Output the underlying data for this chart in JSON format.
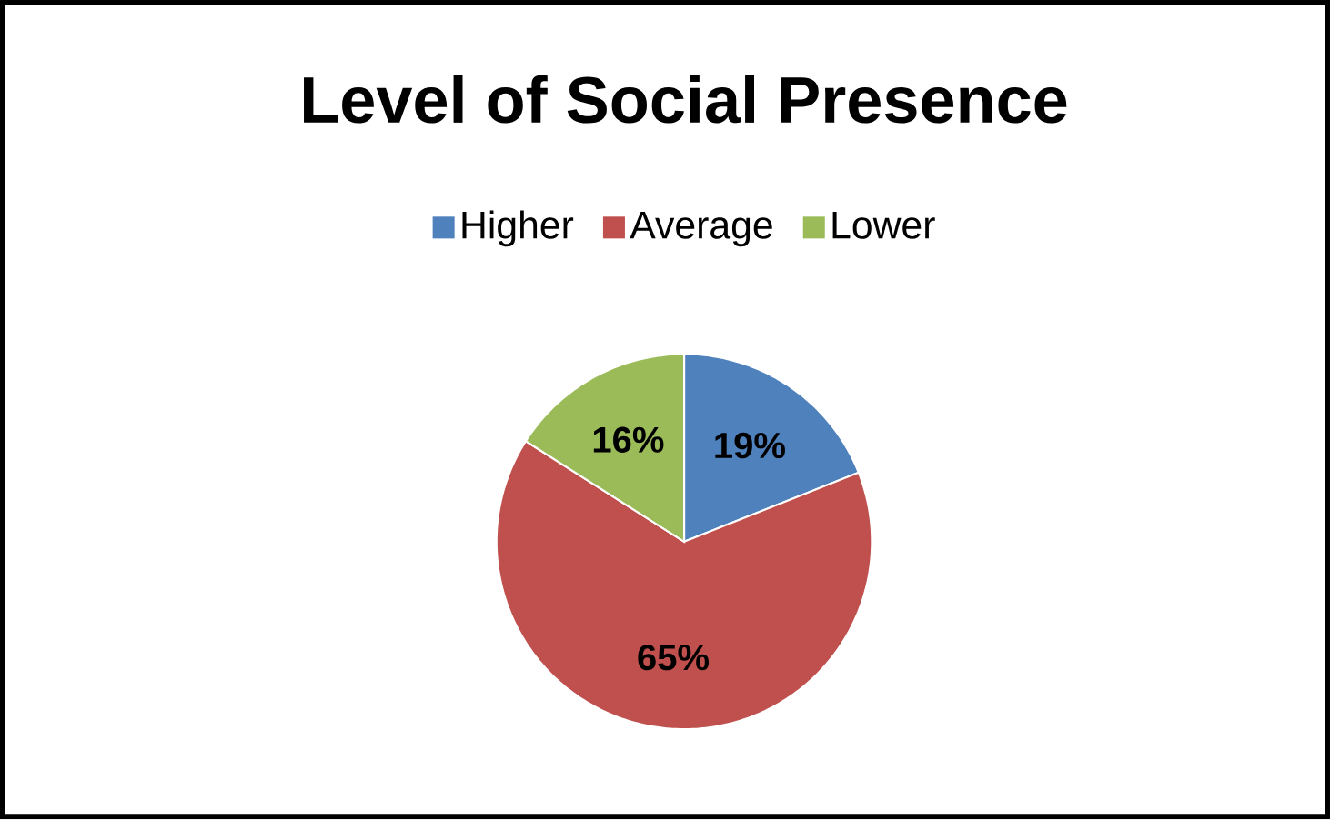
{
  "chart_data": {
    "type": "pie",
    "title": "Level of Social Presence",
    "categories": [
      "Higher",
      "Average",
      "Lower"
    ],
    "values": [
      19,
      65,
      16
    ],
    "colors": [
      "#4f81bd",
      "#c0504d",
      "#9bbb59"
    ],
    "value_labels": [
      "19%",
      "65%",
      "16%"
    ],
    "legend": "top"
  }
}
